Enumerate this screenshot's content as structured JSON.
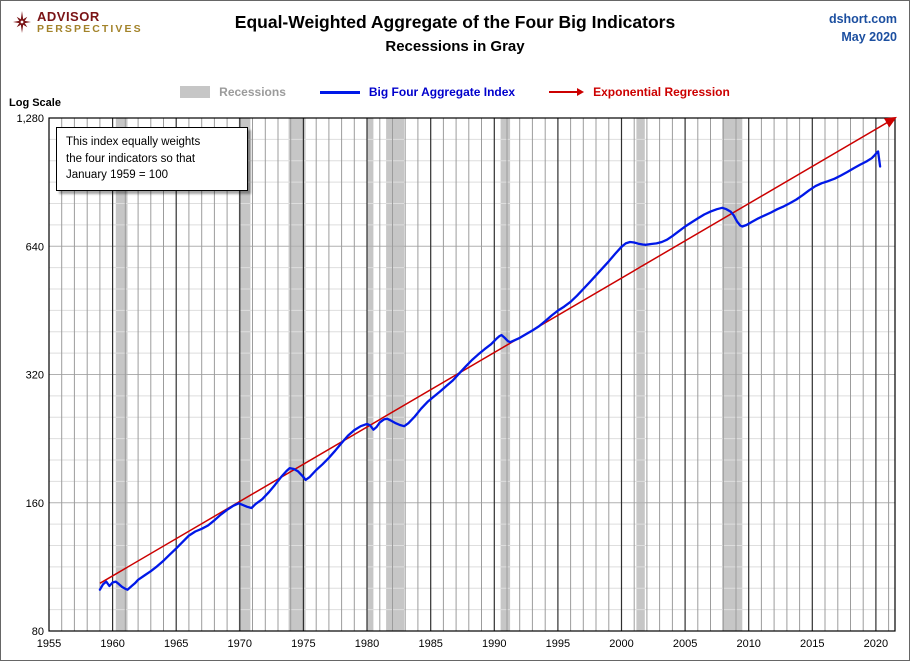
{
  "header": {
    "logo": {
      "line1": "ADVISOR",
      "line2": "PERSPECTIVES"
    },
    "source": "dshort.com",
    "date": "May 2020"
  },
  "legend": [
    {
      "type": "band",
      "label": "Recessions",
      "color": "#c6c6c6",
      "label_color": "#9b9b9b"
    },
    {
      "type": "line",
      "label": "Big Four Aggregate Index",
      "color": "#0018e8",
      "label_color": "#0000cc"
    },
    {
      "type": "arrow-line",
      "label": "Exponential Regression",
      "color": "#cc0000",
      "label_color": "#cc0000"
    }
  ],
  "annotation": {
    "lines": [
      "This index equally weights",
      "the four indicators  so that",
      "January 1959 = 100"
    ]
  },
  "colors": {
    "band": "#c6c6c6",
    "grid_h_minor": "#dedede",
    "grid_h_major": "#b0b0b0",
    "grid_v_minor": "#9c9c9c",
    "grid_v_major": "#2f2f2f",
    "border": "#000000",
    "blue_line": "#0018e8",
    "red_line": "#cc0000"
  },
  "chart_data": {
    "type": "line",
    "title": "Equal-Weighted Aggregate of the Four Big Indicators",
    "subtitle": "Recessions in Gray",
    "ylabel": "Log Scale",
    "y_scale": "log2",
    "x_domain": [
      1955,
      2021.5
    ],
    "y_domain": [
      80,
      1280
    ],
    "grid": true,
    "legend_position": "top",
    "x_ticks": [
      1955,
      1960,
      1965,
      1970,
      1975,
      1980,
      1985,
      1990,
      1995,
      2000,
      2005,
      2010,
      2015,
      2020
    ],
    "y_ticks": [
      {
        "value": 1280,
        "label": "1,280"
      },
      {
        "value": 640,
        "label": "640"
      },
      {
        "value": 320,
        "label": "320"
      },
      {
        "value": 160,
        "label": "160"
      },
      {
        "value": 80,
        "label": "80"
      }
    ],
    "recessions": [
      [
        1960.25,
        1961.17
      ],
      [
        1969.92,
        1970.83
      ],
      [
        1973.83,
        1975.17
      ],
      [
        1980.0,
        1980.5
      ],
      [
        1981.5,
        1982.92
      ],
      [
        1990.5,
        1991.25
      ],
      [
        2001.17,
        2001.83
      ],
      [
        2007.92,
        2009.5
      ]
    ],
    "series": [
      {
        "name": "Big Four Aggregate Index",
        "color": "#0018e8",
        "points": [
          [
            1959.0,
            100
          ],
          [
            1959.25,
            103
          ],
          [
            1959.5,
            104.5
          ],
          [
            1959.75,
            102
          ],
          [
            1960.0,
            104
          ],
          [
            1960.25,
            104.5
          ],
          [
            1960.5,
            103
          ],
          [
            1960.75,
            101.5
          ],
          [
            1961.0,
            100.5
          ],
          [
            1961.17,
            100
          ],
          [
            1961.5,
            102
          ],
          [
            1961.75,
            103.5
          ],
          [
            1962.0,
            105.5
          ],
          [
            1962.5,
            108
          ],
          [
            1963.0,
            110.5
          ],
          [
            1963.5,
            113.5
          ],
          [
            1964.0,
            117
          ],
          [
            1964.5,
            121
          ],
          [
            1965.0,
            125
          ],
          [
            1965.5,
            129.5
          ],
          [
            1966.0,
            134
          ],
          [
            1966.5,
            137
          ],
          [
            1967.0,
            139
          ],
          [
            1967.5,
            141.5
          ],
          [
            1968.0,
            145.5
          ],
          [
            1968.5,
            150
          ],
          [
            1969.0,
            154
          ],
          [
            1969.5,
            157.5
          ],
          [
            1969.92,
            159.5
          ],
          [
            1970.25,
            158
          ],
          [
            1970.58,
            156.5
          ],
          [
            1970.92,
            155.5
          ],
          [
            1971.25,
            159
          ],
          [
            1971.75,
            163
          ],
          [
            1972.25,
            169
          ],
          [
            1972.75,
            176
          ],
          [
            1973.25,
            184
          ],
          [
            1973.67,
            190
          ],
          [
            1973.92,
            193
          ],
          [
            1974.25,
            192
          ],
          [
            1974.58,
            189.5
          ],
          [
            1974.92,
            185
          ],
          [
            1975.17,
            181
          ],
          [
            1975.5,
            184
          ],
          [
            1976.0,
            191
          ],
          [
            1976.5,
            197
          ],
          [
            1977.0,
            204
          ],
          [
            1977.5,
            212
          ],
          [
            1978.0,
            221
          ],
          [
            1978.5,
            230
          ],
          [
            1979.0,
            237
          ],
          [
            1979.5,
            242
          ],
          [
            1980.0,
            245
          ],
          [
            1980.25,
            243
          ],
          [
            1980.5,
            237.5
          ],
          [
            1980.75,
            241
          ],
          [
            1981.0,
            247
          ],
          [
            1981.33,
            251
          ],
          [
            1981.58,
            252
          ],
          [
            1981.92,
            249
          ],
          [
            1982.25,
            246
          ],
          [
            1982.58,
            243.5
          ],
          [
            1982.92,
            242
          ],
          [
            1983.25,
            246
          ],
          [
            1983.75,
            255
          ],
          [
            1984.25,
            266
          ],
          [
            1984.75,
            276
          ],
          [
            1985.25,
            284
          ],
          [
            1985.75,
            292
          ],
          [
            1986.25,
            301
          ],
          [
            1986.75,
            310
          ],
          [
            1987.25,
            322
          ],
          [
            1987.75,
            334
          ],
          [
            1988.25,
            346
          ],
          [
            1988.75,
            357
          ],
          [
            1989.25,
            367
          ],
          [
            1989.75,
            377
          ],
          [
            1990.17,
            388
          ],
          [
            1990.42,
            394
          ],
          [
            1990.58,
            396
          ],
          [
            1990.83,
            390
          ],
          [
            1991.08,
            383
          ],
          [
            1991.25,
            381
          ],
          [
            1991.5,
            384
          ],
          [
            1992.0,
            390
          ],
          [
            1992.5,
            398
          ],
          [
            1993.0,
            406
          ],
          [
            1993.5,
            415
          ],
          [
            1994.0,
            427
          ],
          [
            1994.5,
            440
          ],
          [
            1995.0,
            452
          ],
          [
            1995.5,
            462
          ],
          [
            1996.0,
            474
          ],
          [
            1996.5,
            490
          ],
          [
            1997.0,
            508
          ],
          [
            1997.5,
            527
          ],
          [
            1998.0,
            547
          ],
          [
            1998.5,
            568
          ],
          [
            1999.0,
            590
          ],
          [
            1999.5,
            614
          ],
          [
            2000.0,
            638
          ],
          [
            2000.33,
            650
          ],
          [
            2000.67,
            655
          ],
          [
            2001.0,
            653
          ],
          [
            2001.33,
            649
          ],
          [
            2001.67,
            646
          ],
          [
            2001.92,
            645
          ],
          [
            2002.33,
            648
          ],
          [
            2002.75,
            650
          ],
          [
            2003.17,
            655
          ],
          [
            2003.58,
            663
          ],
          [
            2004.0,
            676
          ],
          [
            2004.5,
            694
          ],
          [
            2005.0,
            712
          ],
          [
            2005.5,
            728
          ],
          [
            2006.0,
            744
          ],
          [
            2006.5,
            760
          ],
          [
            2007.0,
            772
          ],
          [
            2007.5,
            782
          ],
          [
            2007.92,
            788
          ],
          [
            2008.25,
            782
          ],
          [
            2008.58,
            772
          ],
          [
            2008.83,
            756
          ],
          [
            2009.08,
            732
          ],
          [
            2009.33,
            716
          ],
          [
            2009.5,
            712
          ],
          [
            2009.83,
            718
          ],
          [
            2010.25,
            730
          ],
          [
            2010.75,
            744
          ],
          [
            2011.25,
            756
          ],
          [
            2011.75,
            768
          ],
          [
            2012.25,
            782
          ],
          [
            2012.75,
            794
          ],
          [
            2013.25,
            808
          ],
          [
            2013.75,
            824
          ],
          [
            2014.25,
            844
          ],
          [
            2014.75,
            866
          ],
          [
            2015.25,
            886
          ],
          [
            2015.75,
            900
          ],
          [
            2016.25,
            910
          ],
          [
            2016.75,
            922
          ],
          [
            2017.25,
            938
          ],
          [
            2017.75,
            956
          ],
          [
            2018.25,
            976
          ],
          [
            2018.75,
            994
          ],
          [
            2019.25,
            1012
          ],
          [
            2019.67,
            1030
          ],
          [
            2019.92,
            1048
          ],
          [
            2020.08,
            1062
          ],
          [
            2020.17,
            1068
          ],
          [
            2020.33,
            985
          ]
        ]
      }
    ],
    "regression": {
      "name": "Exponential Regression",
      "color": "#cc0000",
      "start": [
        1959.0,
        103.5
      ],
      "end": [
        2021.5,
        1280
      ]
    }
  }
}
